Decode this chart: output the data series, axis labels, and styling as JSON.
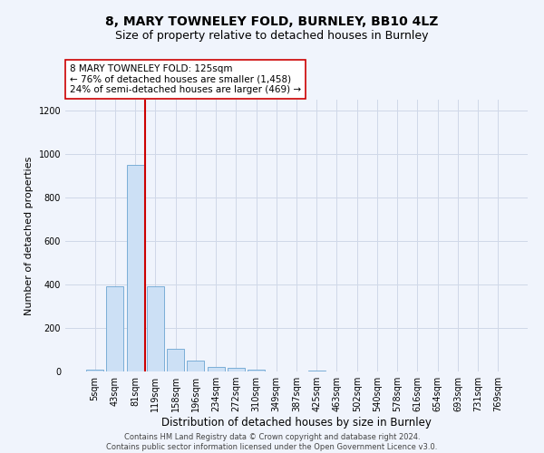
{
  "title": "8, MARY TOWNELEY FOLD, BURNLEY, BB10 4LZ",
  "subtitle": "Size of property relative to detached houses in Burnley",
  "xlabel": "Distribution of detached houses by size in Burnley",
  "ylabel": "Number of detached properties",
  "categories": [
    "5sqm",
    "43sqm",
    "81sqm",
    "119sqm",
    "158sqm",
    "196sqm",
    "234sqm",
    "272sqm",
    "310sqm",
    "349sqm",
    "387sqm",
    "425sqm",
    "463sqm",
    "502sqm",
    "540sqm",
    "578sqm",
    "616sqm",
    "654sqm",
    "693sqm",
    "731sqm",
    "769sqm"
  ],
  "values": [
    10,
    390,
    950,
    390,
    105,
    50,
    20,
    15,
    8,
    0,
    0,
    5,
    0,
    0,
    0,
    0,
    0,
    0,
    0,
    0,
    0
  ],
  "bar_color": "#cce0f5",
  "bar_edge_color": "#7aaed6",
  "property_line_x": 2.5,
  "property_line_color": "#cc0000",
  "annotation_text": "8 MARY TOWNELEY FOLD: 125sqm\n← 76% of detached houses are smaller (1,458)\n24% of semi-detached houses are larger (469) →",
  "annotation_box_color": "#ffffff",
  "annotation_box_edge_color": "#cc0000",
  "ylim": [
    0,
    1250
  ],
  "yticks": [
    0,
    200,
    400,
    600,
    800,
    1000,
    1200
  ],
  "grid_color": "#d0d8e8",
  "background_color": "#f0f4fc",
  "footer_text": "Contains HM Land Registry data © Crown copyright and database right 2024.\nContains public sector information licensed under the Open Government Licence v3.0.",
  "title_fontsize": 10,
  "subtitle_fontsize": 9,
  "xlabel_fontsize": 8.5,
  "ylabel_fontsize": 8,
  "tick_fontsize": 7,
  "annotation_fontsize": 7.5,
  "footer_fontsize": 6
}
